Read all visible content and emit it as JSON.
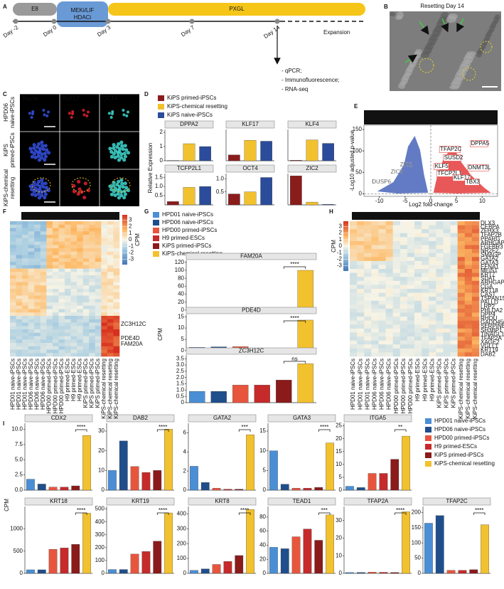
{
  "panel_labels": [
    "A",
    "B",
    "C",
    "D",
    "E",
    "F",
    "G",
    "H",
    "I"
  ],
  "timeline": {
    "stages": [
      {
        "lines": [
          "E8"
        ]
      },
      {
        "lines": [
          "MEKi/LIF",
          "HDACi"
        ]
      },
      {
        "lines": [
          "PXGL"
        ]
      }
    ],
    "days": [
      "Day -2",
      "Day 0",
      "Day 3",
      "Day 7",
      "Day 14"
    ],
    "expansion": "Expansion",
    "analyses": [
      "- qPCR;",
      "- Immunofluorescence;",
      "- RNA-seq"
    ]
  },
  "panel_b": {
    "title": "Resetting Day 14"
  },
  "panel_c": {
    "columns": [
      "Nuclei",
      "KLF17",
      "OCT4"
    ],
    "rows": [
      [
        "HPD06",
        "naive-iPSCs"
      ],
      [
        "KiPS",
        "primed-iPSCs"
      ],
      [
        "KiPS-chemical",
        "resetting"
      ]
    ]
  },
  "heatmap_columns": [
    "HPD01 naive-iPSCs",
    "HPD01 naive-iPSCs",
    "HPD01 naive-iPSCs",
    "HPD06 naive-iPSCs",
    "HPD06 naive-iPSCs",
    "HPD06 naive-iPSCs",
    "HPD00 primed-iPSCs",
    "HPD00 primed-iPSCs",
    "HPD00 primed-iPSCs",
    "H9 primed-ESCs",
    "H9 primed-ESCs",
    "H9 primed-ESCs",
    "KiPS primed-iPSCs",
    "KiPS primed-iPSCs",
    "KiPS primed-iPSCs",
    "KiPS-chemical resetting",
    "KiPS-chemical resetting",
    "KiPS-chemical resetting"
  ],
  "panel_f": {
    "header": "Imprinted genes",
    "colorbar_title": "CPM",
    "colorbar_lim": [
      -3.8,
      3.8
    ],
    "colorbar_ticks": [
      3,
      2,
      1,
      0,
      -1,
      -2,
      -3
    ],
    "row_labels": [
      "ZC3H12C",
      "PDE4D",
      "FAM20A"
    ]
  },
  "panel_h": {
    "header": "Trophectoderm genes",
    "colorbar_title": "CPM",
    "colorbar_lim": [
      -3.8,
      3.8
    ],
    "colorbar_ticks": [
      3,
      2,
      1,
      0,
      -1,
      -2,
      -3
    ],
    "row_labels": [
      "DLX3",
      "CEBPA",
      "ZFHX3",
      "TFAP2B",
      "PPARG",
      "ARHGAP18",
      "FGFBR3",
      "NR2F2",
      "SMAGP",
      "GATA2",
      "GATA3",
      "EFNA1",
      "MEIS1",
      "KRT7",
      "SDAT",
      "ARHGAP10",
      "CGA",
      "KRT18",
      "CAST",
      "TSPAN15",
      "PALLD",
      "LRP2",
      "PHLDA2",
      "DPP4",
      "RHOU",
      "GADD45G",
      "SERPINB1",
      "SH3BP1",
      "TINAGL1",
      "TFAP2A",
      "XAGE2",
      "VGLL1",
      "KRT19",
      "DAB2"
    ]
  },
  "chart_data": [
    {
      "type": "bar-panels",
      "ylabel": "Relative Expression",
      "legend": [
        {
          "name": "KiPS primed-iPSCs",
          "color": "#8b1c1c"
        },
        {
          "name": "KiPS-chemical resetting",
          "color": "#f2c12e"
        },
        {
          "name": "KiPS naive-iPSCs",
          "color": "#2b4c9a"
        }
      ],
      "panels": [
        {
          "title": "DPPA2",
          "values": [
            0.02,
            1.2,
            1.0
          ],
          "ylim": [
            0,
            2.2
          ],
          "yticks": [
            0,
            1,
            2
          ]
        },
        {
          "title": "KLF17",
          "values": [
            0.3,
            1.05,
            1.0
          ],
          "ylim": [
            0,
            1.6
          ],
          "yticks": []
        },
        {
          "title": "KLF4",
          "values": [
            0.03,
            1.2,
            1.0
          ],
          "ylim": [
            0,
            1.8
          ],
          "yticks": []
        },
        {
          "title": "TCFP2L1",
          "values": [
            0.18,
            0.95,
            1.0
          ],
          "ylim": [
            0,
            1.7
          ],
          "yticks": [
            0.5,
            {
              "value": 1,
              "label": "1.0"
            },
            1.5
          ]
        },
        {
          "title": "OCT4",
          "values": [
            0.42,
            0.5,
            1.05
          ],
          "ylim": [
            0,
            1.2
          ],
          "yticks": [
            0.5,
            {
              "value": 1,
              "label": "1.0"
            }
          ]
        },
        {
          "title": "ZIC2",
          "values": [
            52,
            5,
            1
          ],
          "ylim": [
            0,
            56
          ],
          "yticks": []
        }
      ]
    },
    {
      "type": "volcano",
      "title": [
        "KiPS chemical resetting",
        "vs KiPS primed-iPSCs"
      ],
      "xlabel": "Log2 fold-change",
      "ylabel": "-Log10 adjusted p-value",
      "xlim": [
        -13,
        13
      ],
      "xticks": [
        -10,
        -5,
        0,
        5,
        10
      ],
      "ylim": [
        -6,
        160
      ],
      "yticks": [
        0,
        50,
        100,
        150
      ],
      "down_color": "#2f4fb0",
      "up_color": "#e02020",
      "down_genes": [
        "DUSP6",
        "ZIC3",
        "ZIC2"
      ],
      "up_genes": [
        "DPPA5",
        "TFAP2C",
        "SUSD2",
        "KLF5",
        "TFCP2L1",
        "DNMT3L",
        "KLF17",
        "TBX3"
      ]
    },
    {
      "type": "bar-panels",
      "ylabel": "CPM",
      "legend": [
        {
          "name": "HPD01 naive-iPSCs",
          "color": "#4a8fd6"
        },
        {
          "name": "HPD06 naive-iPSCs",
          "color": "#1f4e8c"
        },
        {
          "name": "HPD00 primed-iPSCs",
          "color": "#e8553d"
        },
        {
          "name": "H9 primed-ESCs",
          "color": "#c62a2a"
        },
        {
          "name": "KiPS primed-iPSCs",
          "color": "#8b1a1a"
        },
        {
          "name": "KiPS-chemical resetting",
          "color": "#f2c12e"
        }
      ],
      "panels": [
        {
          "title": "FAM20A",
          "values": [
            3,
            4,
            2,
            1,
            1,
            100
          ],
          "ylim": [
            0,
            125
          ],
          "yticks": [
            0,
            20,
            40,
            60,
            80,
            100,
            120
          ],
          "significance": "****"
        },
        {
          "title": "PDE4D",
          "values": [
            1.5,
            1.7,
            1.8,
            0.6,
            0.5,
            13.5
          ],
          "ylim": [
            0,
            16
          ],
          "yticks": [
            0,
            5,
            10,
            15
          ],
          "significance": "****"
        },
        {
          "title": "ZC3H12C",
          "values": [
            0.9,
            0.9,
            1.4,
            1.4,
            1.8,
            3.1
          ],
          "ylim": [
            0,
            3.8
          ],
          "yticks": [
            0,
            0.5,
            {
              "value": 1,
              "label": "1.0"
            },
            1.5,
            {
              "value": 2,
              "label": "2.0"
            },
            2.5,
            {
              "value": 3,
              "label": "3.0"
            },
            3.5
          ],
          "significance": "ns"
        }
      ]
    },
    {
      "type": "bar-panels",
      "ylabel": "CPM",
      "legend": [
        {
          "name": "HPD01 naive-iPSCs",
          "color": "#4a8fd6"
        },
        {
          "name": "HPD06 naive-iPSCs",
          "color": "#1f4e8c"
        },
        {
          "name": "HPD00 primed-iPSCs",
          "color": "#e8553d"
        },
        {
          "name": "H9 primed-ESCs",
          "color": "#c62a2a"
        },
        {
          "name": "KiPS primed-iPSCs",
          "color": "#8b1a1a"
        },
        {
          "name": "KiPS-chemical resetting",
          "color": "#f2c12e"
        }
      ],
      "panels": [
        {
          "title": "CDX2",
          "values": [
            1.8,
            1.0,
            0.5,
            0.5,
            0.7,
            9.0
          ],
          "ylim": [
            0,
            11
          ],
          "yticks": [
            {
              "value": 0,
              "label": "0.0"
            },
            2.5,
            {
              "value": 5,
              "label": "5.0"
            },
            7.5,
            {
              "value": 10,
              "label": "10.0"
            }
          ],
          "significance": "****"
        },
        {
          "title": "DAB2",
          "values": [
            10,
            25,
            12,
            9,
            10,
            31
          ],
          "ylim": [
            0,
            34
          ],
          "yticks": [
            0,
            10,
            20,
            30
          ],
          "significance": "****"
        },
        {
          "title": "GATA2",
          "values": [
            2.5,
            0.8,
            0.2,
            0.1,
            0.1,
            5.8
          ],
          "ylim": [
            0,
            7
          ],
          "yticks": [
            0,
            2,
            4,
            6
          ],
          "significance": "***"
        },
        {
          "title": "GATA3",
          "values": [
            10,
            1.5,
            0.5,
            0.5,
            0.7,
            12
          ],
          "ylim": [
            0,
            17
          ],
          "yticks": [
            0,
            5,
            10,
            15
          ],
          "significance": "****"
        },
        {
          "title": "ITGA5",
          "values": [
            1.5,
            1,
            6.5,
            6.5,
            12,
            21
          ],
          "ylim": [
            0,
            26
          ],
          "yticks": [
            0,
            5,
            10,
            15,
            20,
            25
          ],
          "significance": "**"
        },
        {
          "title": "KRT18",
          "values": [
            80,
            80,
            540,
            570,
            650,
            1350
          ],
          "ylim": [
            0,
            1500
          ],
          "yticks": [
            0,
            500,
            1000
          ],
          "significance": "****"
        },
        {
          "title": "KRT19",
          "values": [
            30,
            30,
            150,
            170,
            250,
            470
          ],
          "ylim": [
            0,
            520
          ],
          "yticks": [
            0,
            100,
            200,
            300,
            400,
            500
          ],
          "significance": "****"
        },
        {
          "title": "KRT8",
          "values": [
            20,
            30,
            60,
            80,
            120,
            430
          ],
          "ylim": [
            0,
            450
          ],
          "yticks": [
            0,
            100,
            200,
            300,
            400
          ],
          "significance": "****"
        },
        {
          "title": "TEAD1",
          "values": [
            37,
            35,
            52,
            63,
            47,
            83
          ],
          "ylim": [
            0,
            95
          ],
          "yticks": [
            0,
            20,
            40,
            60,
            80
          ],
          "significance": "***"
        },
        {
          "title": "TFAP2A",
          "values": [
            0.5,
            0.5,
            0.7,
            0.6,
            0.5,
            35
          ],
          "ylim": [
            0,
            38
          ],
          "yticks": [
            0,
            10,
            20,
            30
          ],
          "significance": "****"
        },
        {
          "title": "TFAP2C",
          "values": [
            165,
            190,
            10,
            10,
            12,
            160
          ],
          "ylim": [
            0,
            220
          ],
          "yticks": [
            0,
            50,
            100,
            150,
            200
          ],
          "significance": "****"
        }
      ]
    }
  ]
}
